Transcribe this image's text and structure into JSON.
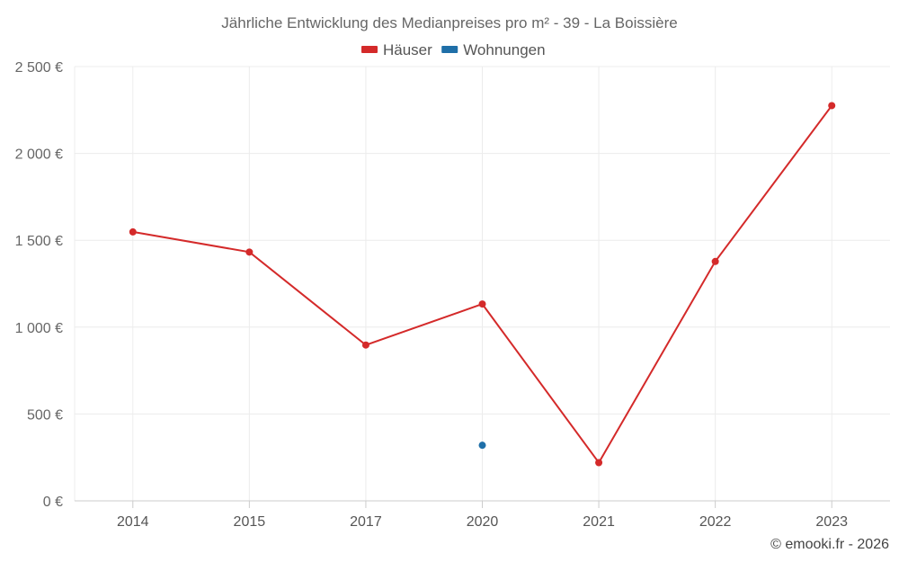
{
  "chart_data": {
    "type": "line",
    "title": "Jährliche Entwicklung des Medianpreises pro m² - 39 - La Boissière",
    "categories": [
      "2014",
      "2015",
      "2017",
      "2020",
      "2021",
      "2022",
      "2023"
    ],
    "ylim": [
      0,
      2500
    ],
    "yticks": [
      0,
      500,
      1000,
      1500,
      2000,
      2500
    ],
    "ytick_labels": [
      "0 €",
      "500 €",
      "1 000 €",
      "1 500 €",
      "2 000 €",
      "2 500 €"
    ],
    "grid": true,
    "legend_position": "top-center",
    "series": [
      {
        "name": "Häuser",
        "color": "#d42a2a",
        "values": [
          1548,
          1432,
          897,
          1133,
          220,
          1378,
          2275
        ]
      },
      {
        "name": "Wohnungen",
        "color": "#1f6fa8",
        "values": [
          null,
          null,
          null,
          320,
          null,
          null,
          null
        ]
      }
    ]
  },
  "credit": "© emooki.fr - 2026"
}
